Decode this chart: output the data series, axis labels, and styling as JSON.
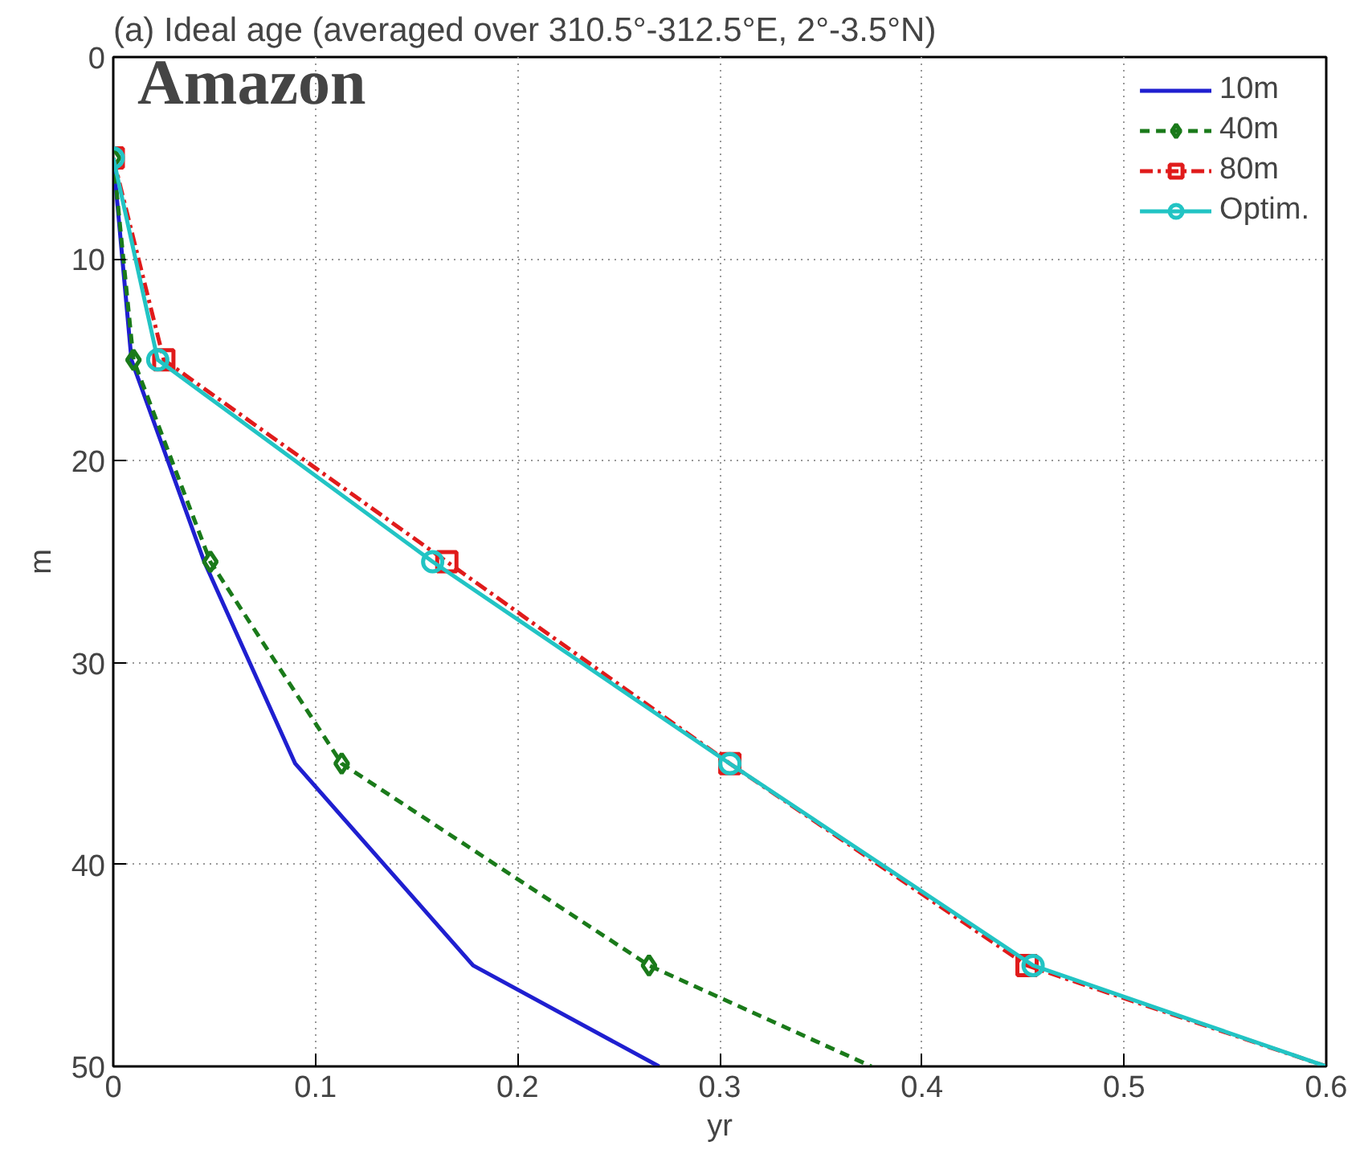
{
  "chart_data": {
    "type": "line",
    "title": "(a) Ideal age (averaged over 310.5°-312.5°E, 2°-3.5°N)",
    "xlabel": "yr",
    "ylabel": "m",
    "annotations": [
      "Amazon"
    ],
    "series": [
      {
        "name": "10m",
        "color": "#1f1fd0",
        "line_style": "solid",
        "marker": "none",
        "x": [
          0,
          0.009,
          0.045,
          0.09,
          0.178,
          0.27
        ],
        "values": [
          5,
          15,
          25,
          35,
          45,
          50
        ]
      },
      {
        "name": "40m",
        "color": "#1a7a1a",
        "line_style": "dashed",
        "marker": "diamond",
        "x": [
          0,
          0.01,
          0.048,
          0.113,
          0.265,
          0.375
        ],
        "values": [
          5,
          15,
          25,
          35,
          45,
          50
        ]
      },
      {
        "name": "80m",
        "color": "#e01b1b",
        "line_style": "dashdot",
        "marker": "square",
        "x": [
          0,
          0.025,
          0.165,
          0.305,
          0.452,
          0.6
        ],
        "values": [
          5,
          15,
          25,
          35,
          45,
          50
        ]
      },
      {
        "name": "Optim.",
        "color": "#22c4c4",
        "line_style": "solid",
        "marker": "circle",
        "x": [
          0,
          0.022,
          0.158,
          0.305,
          0.455,
          0.6
        ],
        "values": [
          5,
          15,
          25,
          35,
          45,
          50
        ]
      }
    ],
    "xlim": [
      0,
      0.6
    ],
    "xticks": [
      0,
      0.1,
      0.2,
      0.3,
      0.4,
      0.5,
      0.6
    ],
    "ylim": [
      50,
      0
    ],
    "yticks": [
      0,
      10,
      20,
      30,
      40,
      50
    ],
    "grid": true,
    "legend": "top right"
  }
}
